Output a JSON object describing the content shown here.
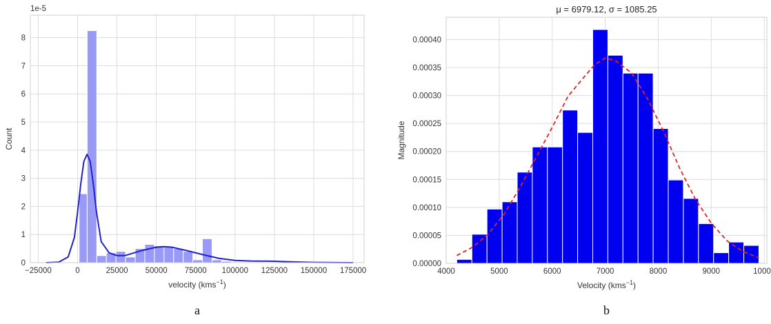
{
  "chart_data": [
    {
      "type": "bar",
      "panel_caption": "a",
      "title": "",
      "scale_label": "1e-5",
      "xlabel": "velocity (kms",
      "xlabel_sup": "−1",
      "xlabel_close": ")",
      "ylabel": "Count",
      "xlim": [
        -30000,
        182000
      ],
      "ylim": [
        0,
        8.8
      ],
      "x_ticks": [
        -25000,
        0,
        25000,
        50000,
        75000,
        100000,
        125000,
        150000,
        175000
      ],
      "x_tick_labels": [
        "−25000",
        "0",
        "25000",
        "50000",
        "75000",
        "100000",
        "125000",
        "150000",
        "175000"
      ],
      "y_ticks": [
        0,
        1,
        2,
        3,
        4,
        5,
        6,
        7,
        8
      ],
      "y_tick_labels": [
        "0",
        "1",
        "2",
        "3",
        "4",
        "5",
        "6",
        "7",
        "8"
      ],
      "grid": true,
      "bar_color": "#9999f7",
      "kde_color": "#1f1fd0",
      "bins": [
        {
          "x0": 1000,
          "x1": 6100,
          "value": 2.45
        },
        {
          "x0": 6100,
          "x1": 12200,
          "value": 8.25
        },
        {
          "x0": 12200,
          "x1": 18300,
          "value": 0.25
        },
        {
          "x0": 18300,
          "x1": 24400,
          "value": 0.35
        },
        {
          "x0": 24400,
          "x1": 30500,
          "value": 0.4
        },
        {
          "x0": 30500,
          "x1": 36600,
          "value": 0.2
        },
        {
          "x0": 36600,
          "x1": 42700,
          "value": 0.5
        },
        {
          "x0": 42700,
          "x1": 48800,
          "value": 0.65
        },
        {
          "x0": 48800,
          "x1": 54900,
          "value": 0.6
        },
        {
          "x0": 54900,
          "x1": 61000,
          "value": 0.55
        },
        {
          "x0": 61000,
          "x1": 67100,
          "value": 0.5
        },
        {
          "x0": 67100,
          "x1": 73200,
          "value": 0.4
        },
        {
          "x0": 73200,
          "x1": 79300,
          "value": 0.1
        },
        {
          "x0": 79300,
          "x1": 85400,
          "value": 0.85
        },
        {
          "x0": 85400,
          "x1": 91500,
          "value": 0.1
        },
        {
          "x0": 91500,
          "x1": 97600,
          "value": 0.05
        },
        {
          "x0": 128000,
          "x1": 134100,
          "value": 0.03
        }
      ],
      "kde": {
        "x": [
          -20000,
          -12000,
          -6000,
          -2000,
          0,
          2000,
          4000,
          6000,
          8000,
          10000,
          12000,
          15000,
          20000,
          25000,
          30000,
          40000,
          50000,
          55000,
          60000,
          70000,
          80000,
          90000,
          100000,
          110000,
          125000,
          135000,
          150000,
          175000
        ],
        "y": [
          0.0,
          0.02,
          0.2,
          0.9,
          1.8,
          2.8,
          3.6,
          3.85,
          3.6,
          2.8,
          1.8,
          0.75,
          0.35,
          0.25,
          0.25,
          0.42,
          0.55,
          0.57,
          0.55,
          0.42,
          0.28,
          0.15,
          0.08,
          0.06,
          0.05,
          0.03,
          0.01,
          0.0
        ]
      }
    },
    {
      "type": "bar",
      "panel_caption": "b",
      "title": "μ = 6979.12, σ =  1085.25",
      "xlabel": "Velocity (kms",
      "xlabel_sup": "−1",
      "xlabel_close": ")",
      "ylabel": "Magnitude",
      "xlim": [
        4000,
        10050
      ],
      "ylim": [
        0,
        0.00044
      ],
      "x_ticks": [
        4000,
        5000,
        6000,
        7000,
        8000,
        9000,
        10000
      ],
      "x_tick_labels": [
        "4000",
        "5000",
        "6000",
        "7000",
        "8000",
        "9000",
        "10000"
      ],
      "y_ticks": [
        0,
        5e-05,
        0.0001,
        0.00015,
        0.0002,
        0.00025,
        0.0003,
        0.00035,
        0.0004
      ],
      "y_tick_labels": [
        "0.00000",
        "0.00005",
        "0.00010",
        "0.00015",
        "0.00020",
        "0.00025",
        "0.00030",
        "0.00035",
        "0.00040"
      ],
      "grid": true,
      "bar_color": "#0000f0",
      "fit_color": "#e82020",
      "bins": [
        {
          "x0": 4200,
          "x1": 4485,
          "value": 7e-06
        },
        {
          "x0": 4485,
          "x1": 4770,
          "value": 5.2e-05
        },
        {
          "x0": 4770,
          "x1": 5055,
          "value": 9.7e-05
        },
        {
          "x0": 5055,
          "x1": 5340,
          "value": 0.00011
        },
        {
          "x0": 5340,
          "x1": 5625,
          "value": 0.000163
        },
        {
          "x0": 5625,
          "x1": 5910,
          "value": 0.000208
        },
        {
          "x0": 5910,
          "x1": 6195,
          "value": 0.000208
        },
        {
          "x0": 6195,
          "x1": 6480,
          "value": 0.000274
        },
        {
          "x0": 6480,
          "x1": 6765,
          "value": 0.000234
        },
        {
          "x0": 6765,
          "x1": 7050,
          "value": 0.000418
        },
        {
          "x0": 7050,
          "x1": 7335,
          "value": 0.000372
        },
        {
          "x0": 7335,
          "x1": 7620,
          "value": 0.00034
        },
        {
          "x0": 7620,
          "x1": 7905,
          "value": 0.00034
        },
        {
          "x0": 7905,
          "x1": 8190,
          "value": 0.000241
        },
        {
          "x0": 8190,
          "x1": 8475,
          "value": 0.000149
        },
        {
          "x0": 8475,
          "x1": 8760,
          "value": 0.000116
        },
        {
          "x0": 8760,
          "x1": 9045,
          "value": 7.1e-05
        },
        {
          "x0": 9045,
          "x1": 9330,
          "value": 1.9e-05
        },
        {
          "x0": 9330,
          "x1": 9615,
          "value": 3.8e-05
        },
        {
          "x0": 9615,
          "x1": 9900,
          "value": 3.2e-05
        }
      ],
      "fit_curve": {
        "x": [
          4200,
          4500,
          4800,
          5100,
          5400,
          5700,
          6000,
          6300,
          6600,
          6800,
          7000,
          7200,
          7500,
          7800,
          8100,
          8400,
          8700,
          9000,
          9300,
          9600,
          9900
        ],
        "y": [
          1.4e-05,
          2.9e-05,
          5.3e-05,
          8.9e-05,
          0.000137,
          0.00019,
          0.000243,
          0.000299,
          0.000333,
          0.000355,
          0.000367,
          0.000362,
          0.00034,
          0.000294,
          0.000236,
          0.000171,
          0.000115,
          7.2e-05,
          4e-05,
          2.1e-05,
          1e-05
        ]
      }
    }
  ]
}
